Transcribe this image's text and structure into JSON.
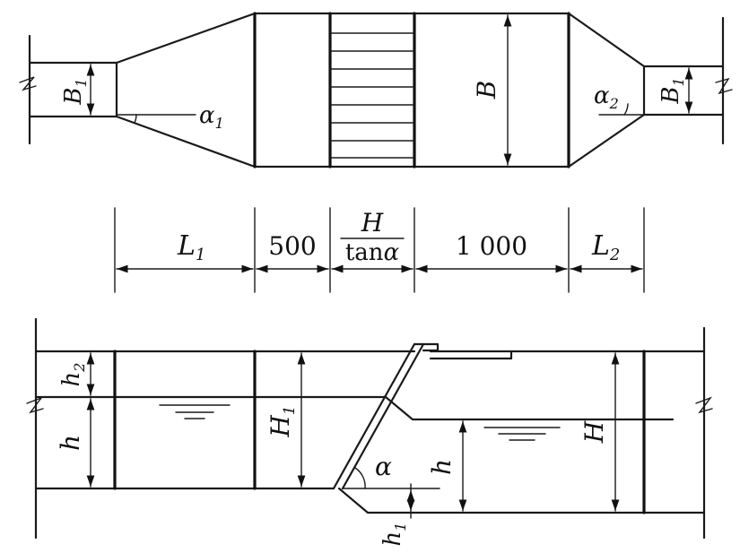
{
  "plan": {
    "B1_left": "B",
    "B1_left_sub": "1",
    "B1_right": "B",
    "B1_right_sub": "1",
    "B": "B",
    "alpha1": "α",
    "alpha1_sub": "1",
    "alpha2": "α",
    "alpha2_sub": "2"
  },
  "dims": {
    "L1": "L",
    "L1_sub": "1",
    "d500": "500",
    "frac_num": "H",
    "frac_den_tan": "tan",
    "frac_den_alpha": "α",
    "d1000": "1 000",
    "L2": "L",
    "L2_sub": "2"
  },
  "section": {
    "h2": "h",
    "h2_sub": "2",
    "h_left": "h",
    "H1": "H",
    "H1_sub": "1",
    "alpha": "α",
    "h_right": "h",
    "H": "H",
    "h1": "h",
    "h1_sub": "1"
  }
}
